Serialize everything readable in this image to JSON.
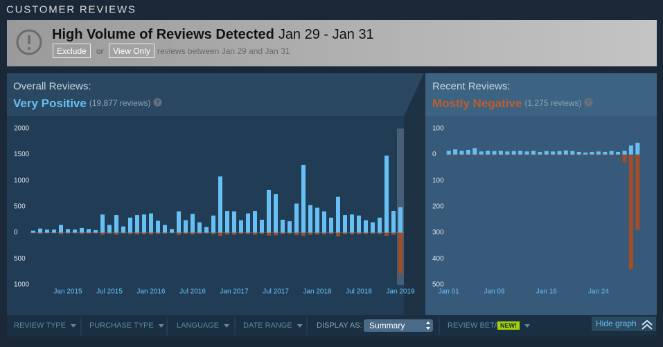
{
  "header": {
    "title": "CUSTOMER REVIEWS"
  },
  "alert": {
    "title": "High Volume of Reviews Detected",
    "dates": "Jan 29 - Jan 31",
    "exclude": "Exclude",
    "or": "or",
    "view_only": "View Only",
    "note": "reviews between Jan 29 and Jan 31"
  },
  "overall": {
    "label": "Overall Reviews:",
    "rating": "Very Positive",
    "count": "(19,877 reviews)",
    "help": "?"
  },
  "recent": {
    "label": "Recent Reviews:",
    "rating": "Mostly Negative",
    "count": "(1,275 reviews)",
    "help": "?"
  },
  "chart_data": [
    {
      "type": "bar",
      "categories": [
        null,
        null,
        null,
        null,
        null,
        "Jan 2015",
        null,
        null,
        null,
        null,
        null,
        "Jul 2015",
        null,
        null,
        null,
        null,
        null,
        "Jan 2016",
        null,
        null,
        null,
        null,
        null,
        "Jul 2016",
        null,
        null,
        null,
        null,
        null,
        "Jan 2017",
        null,
        null,
        null,
        null,
        null,
        "Jul 2017",
        null,
        null,
        null,
        null,
        null,
        "Jan 2018",
        null,
        null,
        null,
        null,
        null,
        "Jul 2018",
        null,
        null,
        null,
        null,
        null,
        "Jan 2019"
      ],
      "series": [
        {
          "color": "#66c0f4",
          "values": [
            40,
            80,
            60,
            60,
            150,
            70,
            60,
            90,
            70,
            50,
            350,
            150,
            340,
            120,
            290,
            340,
            350,
            370,
            230,
            150,
            70,
            410,
            240,
            360,
            200,
            110,
            330,
            1080,
            420,
            410,
            240,
            370,
            420,
            250,
            820,
            740,
            250,
            220,
            560,
            1300,
            530,
            480,
            410,
            290,
            690,
            340,
            350,
            330,
            240,
            200,
            290,
            1480,
            420,
            490
          ]
        },
        {
          "color": "#a34c25",
          "values": [
            -10,
            -20,
            -10,
            -10,
            -30,
            -15,
            -10,
            -20,
            -15,
            -10,
            -40,
            -20,
            -40,
            -15,
            -30,
            -35,
            -30,
            -35,
            -25,
            -20,
            -10,
            -40,
            -25,
            -35,
            -20,
            -15,
            -30,
            -60,
            -35,
            -40,
            -25,
            -30,
            -40,
            -25,
            -55,
            -50,
            -25,
            -20,
            -45,
            -60,
            -40,
            -35,
            -35,
            -30,
            -70,
            -30,
            -35,
            -30,
            -25,
            -20,
            -30,
            -60,
            -40,
            -780
          ]
        }
      ],
      "ylim": [
        -1000,
        2000
      ],
      "yticks": [
        2000,
        1500,
        1000,
        500,
        0,
        {
          "value": -500,
          "label": "500"
        },
        {
          "value": -1000,
          "label": "1000"
        }
      ]
    },
    {
      "type": "bar",
      "categories": [
        "Jan 01",
        null,
        null,
        null,
        null,
        null,
        null,
        "Jan 08",
        null,
        null,
        null,
        null,
        null,
        null,
        null,
        "Jan 16",
        null,
        null,
        null,
        null,
        null,
        null,
        null,
        "Jan 24",
        null,
        null,
        null,
        null,
        null,
        null
      ],
      "series": [
        {
          "color": "#66c0f4",
          "values": [
            15,
            20,
            15,
            18,
            25,
            12,
            15,
            14,
            15,
            12,
            14,
            15,
            12,
            15,
            10,
            14,
            12,
            14,
            16,
            14,
            10,
            8,
            10,
            12,
            10,
            14,
            10,
            15,
            35,
            45
          ]
        },
        {
          "color": "#a34c25",
          "values": [
            -2,
            -2,
            -2,
            -2,
            -2,
            -2,
            -2,
            -2,
            -2,
            -2,
            -2,
            -2,
            -2,
            -2,
            -2,
            -2,
            -2,
            -2,
            -2,
            -2,
            -2,
            -2,
            -2,
            -2,
            -2,
            -2,
            -2,
            -30,
            -440,
            -290
          ]
        }
      ],
      "ylim": [
        -500,
        100
      ],
      "yticks": [
        100,
        0,
        {
          "value": -100,
          "label": "100"
        },
        {
          "value": -200,
          "label": "200"
        },
        {
          "value": -300,
          "label": "300"
        },
        {
          "value": -400,
          "label": "400"
        },
        {
          "value": -500,
          "label": "500"
        }
      ]
    }
  ],
  "filters": {
    "items": [
      "REVIEW TYPE",
      "PURCHASE TYPE",
      "LANGUAGE",
      "DATE RANGE"
    ],
    "display_as": "DISPLAY AS:",
    "summary": "Summary",
    "review_beta": "REVIEW BETA",
    "new": "NEW!",
    "hide_graph": "Hide graph"
  }
}
